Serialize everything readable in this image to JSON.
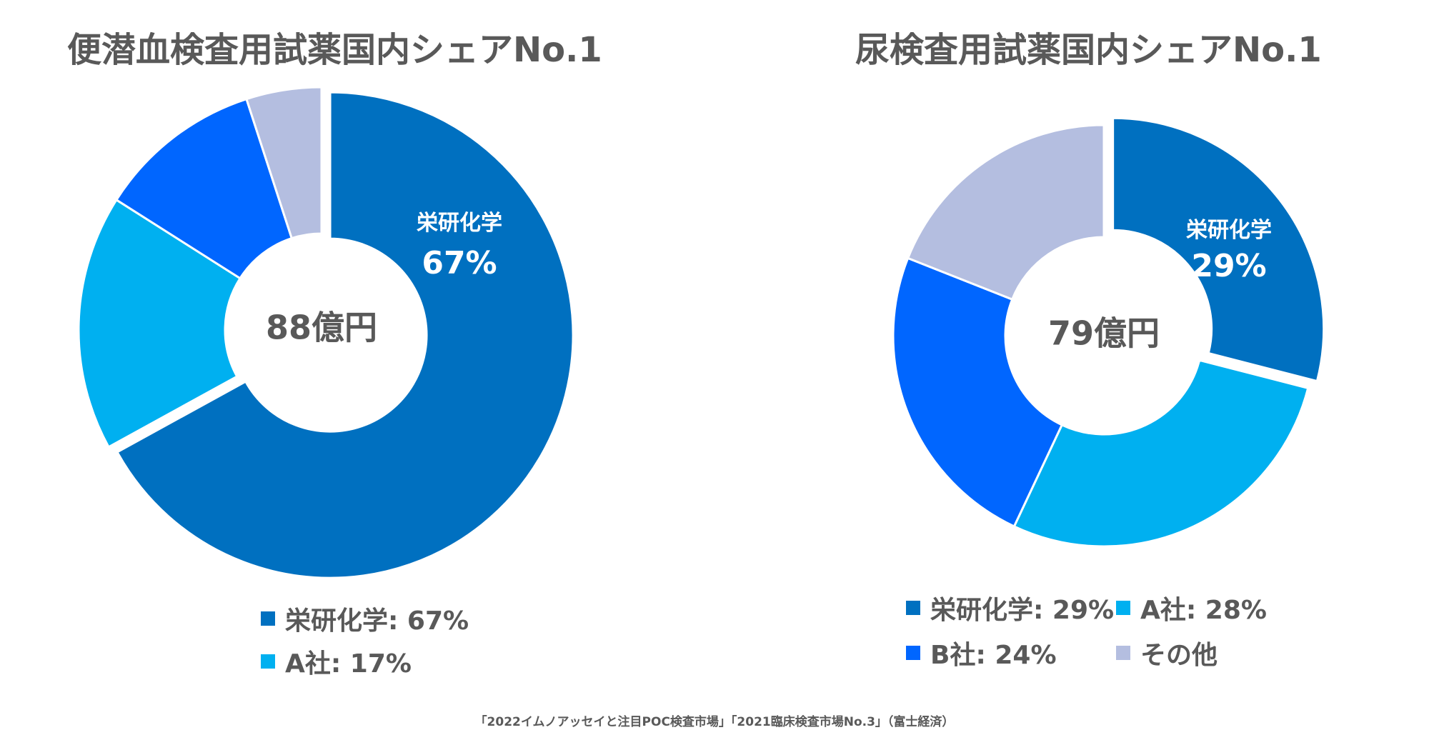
{
  "chart_data": [
    {
      "type": "pie",
      "title": "便潜血検査用試薬国内シェアNo.1",
      "center_label": "88億円",
      "slices": [
        {
          "name": "栄研化学",
          "value": 67,
          "color": "#0070C0",
          "label_name": "栄研化学",
          "label_pct": "67%",
          "exploded": true
        },
        {
          "name": "A社",
          "value": 17,
          "color": "#00B0F0"
        },
        {
          "name": "",
          "value": 11,
          "color": "#0066FF"
        },
        {
          "name": "",
          "value": 5,
          "color": "#B4BEE0"
        }
      ],
      "legend": [
        {
          "text": "栄研化学: 67%",
          "color": "#0070C0"
        },
        {
          "text": "A社: 17%",
          "color": "#00B0F0"
        }
      ]
    },
    {
      "type": "pie",
      "title": "尿検査用試薬国内シェアNo.1",
      "center_label": "79億円",
      "slices": [
        {
          "name": "栄研化学",
          "value": 29,
          "color": "#0070C0",
          "label_name": "栄研化学",
          "label_pct": "29%",
          "exploded": true
        },
        {
          "name": "A社",
          "value": 28,
          "color": "#00B0F0"
        },
        {
          "name": "B社",
          "value": 24,
          "color": "#0066FF"
        },
        {
          "name": "その他",
          "value": 19,
          "color": "#B4BEE0"
        }
      ],
      "legend": [
        {
          "text": "栄研化学: 29%",
          "color": "#0070C0"
        },
        {
          "text": "A社: 28%",
          "color": "#00B0F0"
        },
        {
          "text": "B社: 24%",
          "color": "#0066FF"
        },
        {
          "text": "その他",
          "color": "#B4BEE0"
        }
      ]
    }
  ],
  "source_note": "「2022イムノアッセイと注目POC検査市場」「2021臨床検査市場No.3」（富士経済）"
}
